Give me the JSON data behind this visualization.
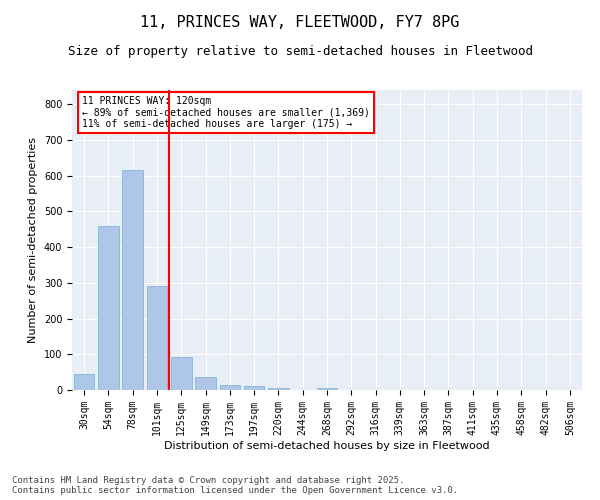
{
  "title1": "11, PRINCES WAY, FLEETWOOD, FY7 8PG",
  "title2": "Size of property relative to semi-detached houses in Fleetwood",
  "xlabel": "Distribution of semi-detached houses by size in Fleetwood",
  "ylabel": "Number of semi-detached properties",
  "categories": [
    "30sqm",
    "54sqm",
    "78sqm",
    "101sqm",
    "125sqm",
    "149sqm",
    "173sqm",
    "197sqm",
    "220sqm",
    "244sqm",
    "268sqm",
    "292sqm",
    "316sqm",
    "339sqm",
    "363sqm",
    "387sqm",
    "411sqm",
    "435sqm",
    "458sqm",
    "482sqm",
    "506sqm"
  ],
  "values": [
    46,
    460,
    615,
    290,
    93,
    37,
    14,
    10,
    7,
    0,
    5,
    0,
    0,
    0,
    0,
    0,
    0,
    0,
    0,
    0,
    0
  ],
  "bar_color": "#aec6e8",
  "bar_edge_color": "#7aadd4",
  "red_line_x": 3.5,
  "annotation_title": "11 PRINCES WAY: 120sqm",
  "annotation_line1": "← 89% of semi-detached houses are smaller (1,369)",
  "annotation_line2": "11% of semi-detached houses are larger (175) →",
  "annotation_box_color": "white",
  "annotation_box_edge": "red",
  "ylim": [
    0,
    840
  ],
  "yticks": [
    0,
    100,
    200,
    300,
    400,
    500,
    600,
    700,
    800
  ],
  "bg_color": "#e8eef5",
  "grid_color": "white",
  "footer1": "Contains HM Land Registry data © Crown copyright and database right 2025.",
  "footer2": "Contains public sector information licensed under the Open Government Licence v3.0.",
  "title1_fontsize": 11,
  "title2_fontsize": 9,
  "axis_fontsize": 8,
  "tick_fontsize": 7,
  "annot_fontsize": 7,
  "footer_fontsize": 6.5
}
